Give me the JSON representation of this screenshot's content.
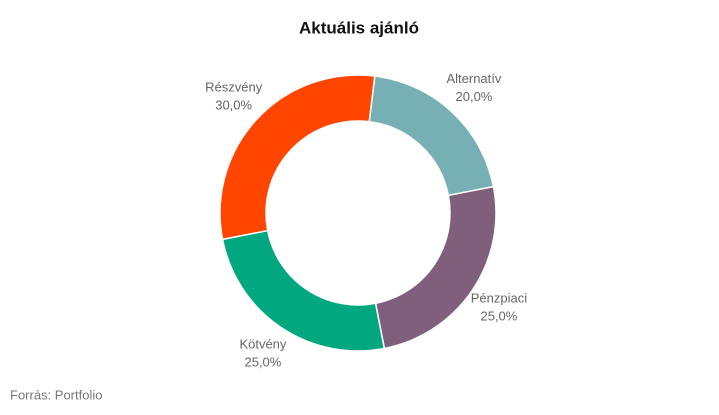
{
  "chart_data": {
    "type": "donut",
    "title": "Aktuális ajánló",
    "categories": [
      "Alternatív",
      "Pénzpiaci",
      "Kötvény",
      "Részvény"
    ],
    "values": [
      20,
      25,
      25,
      30
    ],
    "value_labels": [
      "20,0%",
      "25,0%",
      "25,0%",
      "30,0%"
    ],
    "colors": [
      "#77b0b4",
      "#7f5f7c",
      "#00a77f",
      "#ff4500"
    ],
    "source": "Forrás: Portfolio"
  }
}
